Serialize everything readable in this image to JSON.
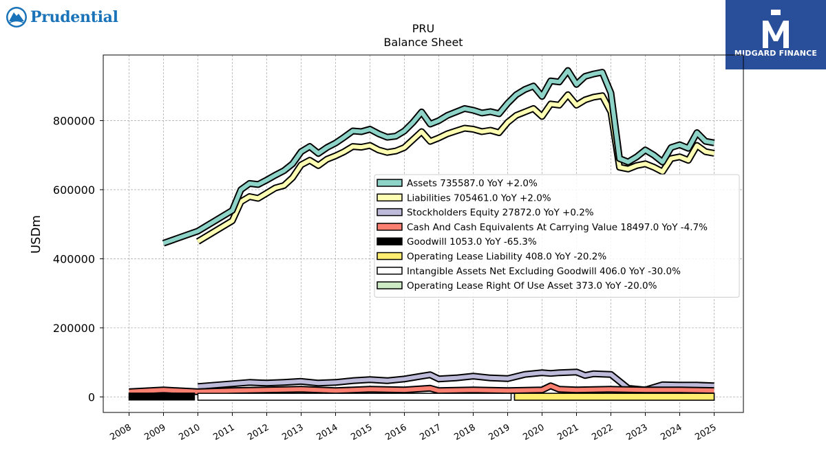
{
  "logos": {
    "left_text": "Prudential",
    "right_text": "MIDGARD FINANCE",
    "left_color": "#1a73b8",
    "right_bg": "#2a4f9a"
  },
  "chart_data": {
    "type": "area",
    "title": "PRU",
    "subtitle": "Balance  Sheet",
    "ylabel": "USDm",
    "xlabel": "",
    "ylim": [
      -45000,
      990000
    ],
    "xlim": [
      2007.25,
      2025.85
    ],
    "grid": true,
    "legend_position": "center-right",
    "yticks": [
      0,
      200000,
      400000,
      600000,
      800000
    ],
    "ytick_labels": [
      "0",
      "200000",
      "400000",
      "600000",
      "800000"
    ],
    "xticks": [
      2008,
      2009,
      2010,
      2011,
      2012,
      2013,
      2014,
      2015,
      2016,
      2017,
      2018,
      2019,
      2020,
      2021,
      2022,
      2023,
      2024,
      2025
    ],
    "xtick_labels": [
      "2008",
      "2009",
      "2010",
      "2011",
      "2012",
      "2013",
      "2014",
      "2015",
      "2016",
      "2017",
      "2018",
      "2019",
      "2020",
      "2021",
      "2022",
      "2023",
      "2024",
      "2025"
    ],
    "series": [
      {
        "name": "Assets",
        "legend": "Assets  735587.0 YoY +2.0%",
        "color": "#8dd3c7",
        "x": [
          2009.0,
          2010.0,
          2011.0,
          2011.25,
          2011.5,
          2011.75,
          2012.0,
          2012.25,
          2012.5,
          2012.75,
          2013.0,
          2013.25,
          2013.5,
          2013.75,
          2014.0,
          2014.25,
          2014.5,
          2014.75,
          2015.0,
          2015.25,
          2015.5,
          2015.75,
          2016.0,
          2016.25,
          2016.5,
          2016.75,
          2017.0,
          2017.25,
          2017.5,
          2017.75,
          2018.0,
          2018.25,
          2018.5,
          2018.75,
          2019.0,
          2019.25,
          2019.5,
          2019.75,
          2020.0,
          2020.25,
          2020.5,
          2020.75,
          2021.0,
          2021.25,
          2021.5,
          2021.75,
          2022.0,
          2022.25,
          2022.5,
          2022.75,
          2023.0,
          2023.25,
          2023.5,
          2023.75,
          2024.0,
          2024.25,
          2024.5,
          2024.75,
          2025.0
        ],
        "values": [
          445000,
          480000,
          540000,
          600000,
          618000,
          615000,
          628000,
          642000,
          655000,
          675000,
          710000,
          725000,
          705000,
          722000,
          735000,
          752000,
          770000,
          768000,
          775000,
          762000,
          752000,
          755000,
          770000,
          795000,
          825000,
          790000,
          800000,
          815000,
          825000,
          835000,
          830000,
          822000,
          826000,
          820000,
          850000,
          875000,
          890000,
          900000,
          870000,
          915000,
          912000,
          945000,
          905000,
          928000,
          935000,
          940000,
          880000,
          690000,
          680000,
          695000,
          715000,
          700000,
          680000,
          722000,
          730000,
          720000,
          765000,
          740000,
          735587
        ]
      },
      {
        "name": "Liabilities",
        "legend": "Liabilities  705461.0 YoY +2.0%",
        "color": "#ffffb3",
        "x": [
          2010.0,
          2011.0,
          2011.25,
          2011.5,
          2011.75,
          2012.0,
          2012.25,
          2012.5,
          2012.75,
          2013.0,
          2013.25,
          2013.5,
          2013.75,
          2014.0,
          2014.25,
          2014.5,
          2014.75,
          2015.0,
          2015.25,
          2015.5,
          2015.75,
          2016.0,
          2016.25,
          2016.5,
          2016.75,
          2017.0,
          2017.25,
          2017.5,
          2017.75,
          2018.0,
          2018.25,
          2018.5,
          2018.75,
          2019.0,
          2019.25,
          2019.5,
          2019.75,
          2020.0,
          2020.25,
          2020.5,
          2020.75,
          2021.0,
          2021.25,
          2021.5,
          2021.75,
          2022.0,
          2022.25,
          2022.5,
          2022.75,
          2023.0,
          2023.25,
          2023.5,
          2023.75,
          2024.0,
          2024.25,
          2024.5,
          2024.75,
          2025.0
        ],
        "values": [
          450000,
          510000,
          565000,
          580000,
          575000,
          590000,
          605000,
          612000,
          635000,
          672000,
          685000,
          670000,
          688000,
          698000,
          710000,
          725000,
          723000,
          728000,
          715000,
          708000,
          712000,
          722000,
          745000,
          768000,
          740000,
          750000,
          762000,
          770000,
          778000,
          775000,
          768000,
          772000,
          765000,
          795000,
          815000,
          825000,
          835000,
          812000,
          848000,
          845000,
          875000,
          845000,
          860000,
          868000,
          872000,
          825000,
          665000,
          660000,
          670000,
          675000,
          665000,
          652000,
          690000,
          695000,
          685000,
          728000,
          710000,
          705461
        ]
      },
      {
        "name": "Stockholders Equity",
        "legend": "Stockholders Equity  27872.0 YoY +0.2%",
        "color": "#bebada",
        "x": [
          2010.0,
          2011.0,
          2011.5,
          2012.0,
          2012.5,
          2013.0,
          2013.5,
          2014.0,
          2014.5,
          2015.0,
          2015.5,
          2016.0,
          2016.5,
          2016.75,
          2017.0,
          2017.5,
          2018.0,
          2018.5,
          2019.0,
          2019.5,
          2020.0,
          2020.25,
          2020.5,
          2021.0,
          2021.25,
          2021.5,
          2022.0,
          2022.5,
          2023.0,
          2023.5,
          2024.0,
          2024.5,
          2025.0
        ],
        "values": [
          30000,
          38000,
          42000,
          40000,
          42000,
          45000,
          40000,
          42000,
          47000,
          50000,
          47000,
          52000,
          60000,
          64000,
          52000,
          55000,
          60000,
          55000,
          53000,
          65000,
          70000,
          68000,
          70000,
          72000,
          62000,
          67000,
          65000,
          25000,
          20000,
          35000,
          34000,
          34000,
          32000
        ]
      },
      {
        "name": "Cash And Cash Equivalents At Carrying Value",
        "legend": "Cash And Cash Equivalents At Carrying Value  18497.0 YoY -4.7%",
        "color": "#fb8072",
        "x": [
          2008.0,
          2009.0,
          2010.0,
          2011.0,
          2012.0,
          2013.0,
          2014.0,
          2015.0,
          2016.0,
          2016.75,
          2017.0,
          2018.0,
          2019.0,
          2020.0,
          2020.25,
          2020.5,
          2021.0,
          2022.0,
          2023.0,
          2024.0,
          2025.0
        ],
        "values": [
          15000,
          20000,
          15000,
          18000,
          20000,
          22000,
          18000,
          22000,
          20000,
          25000,
          18000,
          20000,
          18000,
          20000,
          32000,
          22000,
          20000,
          22000,
          20000,
          20000,
          18497
        ]
      },
      {
        "name": "Goodwill",
        "legend": "Goodwill  1053.0 YoY -65.3%",
        "color": "#000000",
        "x": [
          2008.0,
          2009.9
        ],
        "values": [
          1053,
          1053
        ]
      },
      {
        "name": "Operating Lease Liability",
        "legend": "Operating Lease Liability  408.0 YoY -20.2%",
        "color": "#ffed6f",
        "x": [
          2019.2,
          2025.0
        ],
        "values": [
          408,
          408
        ]
      },
      {
        "name": "Intangible Assets Net Excluding Goodwill",
        "legend": "Intangible Assets Net Excluding Goodwill  406.0 YoY -30.0%",
        "color": "#ffffff",
        "x": [
          2010.0,
          2019.1
        ],
        "values": [
          406,
          406
        ]
      },
      {
        "name": "Operating Lease Right Of Use Asset",
        "legend": "Operating Lease Right Of Use Asset  373.0 YoY -20.0%",
        "color": "#ccebc5",
        "x": [
          2019.2,
          2025.0
        ],
        "values": [
          373,
          373
        ]
      }
    ]
  }
}
